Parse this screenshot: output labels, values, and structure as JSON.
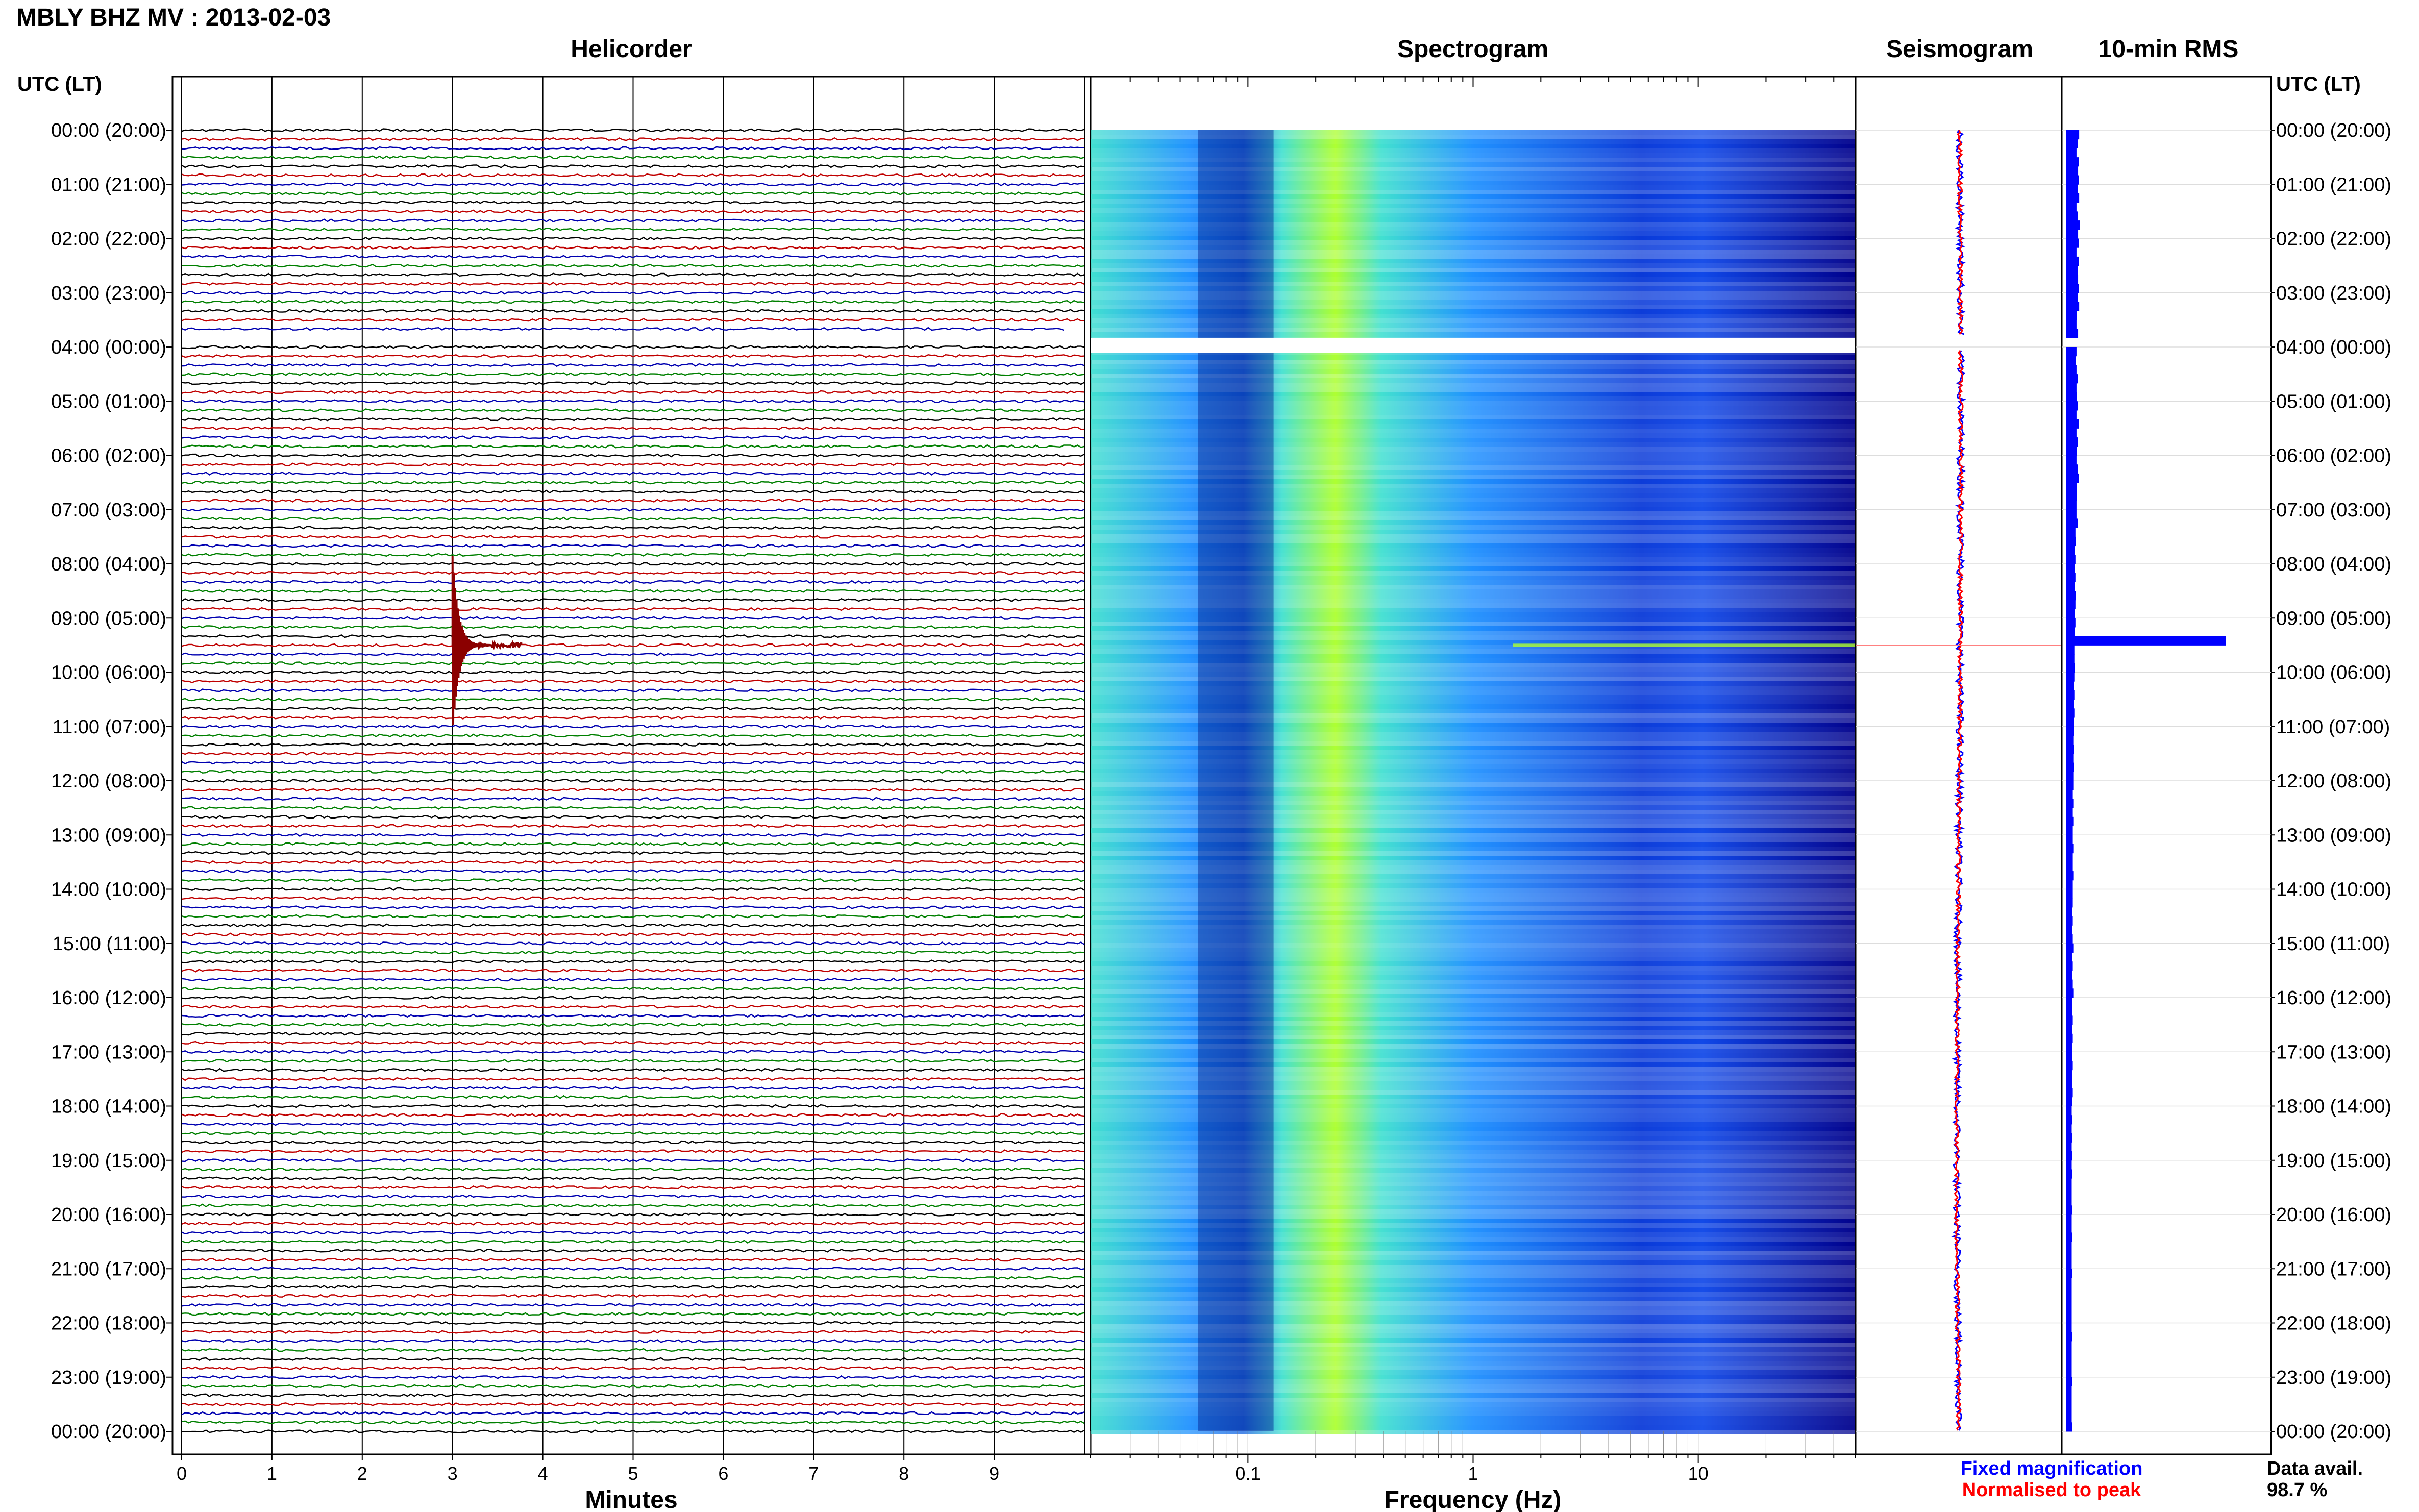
{
  "header": {
    "title": "MBLY BHZ MV : 2013-02-03",
    "utc_label_left": "UTC (LT)",
    "utc_label_right": "UTC (LT)"
  },
  "panels": {
    "helicorder": "Helicorder",
    "spectrogram": "Spectrogram",
    "seismogram": "Seismogram",
    "rms": "10-min RMS"
  },
  "colors": {
    "trace_cycle": [
      "#000000",
      "#c00000",
      "#0000b0",
      "#008000"
    ],
    "event": "#8b0000",
    "spec_low": "#00008b",
    "spec_mid": "#1e90ff",
    "spec_high": "#40e0d0",
    "spec_peak": "#adff2f",
    "fixed": "#0000ff",
    "normalised": "#ff0000",
    "rms_bar": "#0000ff"
  },
  "chart_data": {
    "type": "helicorder",
    "time_labels": [
      "00:00 (20:00)",
      "01:00 (21:00)",
      "02:00 (22:00)",
      "03:00 (23:00)",
      "04:00 (00:00)",
      "05:00 (01:00)",
      "06:00 (02:00)",
      "07:00 (03:00)",
      "08:00 (04:00)",
      "09:00 (05:00)",
      "10:00 (06:00)",
      "11:00 (07:00)",
      "12:00 (08:00)",
      "13:00 (09:00)",
      "14:00 (10:00)",
      "15:00 (11:00)",
      "16:00 (12:00)",
      "17:00 (13:00)",
      "18:00 (14:00)",
      "19:00 (15:00)",
      "20:00 (16:00)",
      "21:00 (17:00)",
      "22:00 (18:00)",
      "23:00 (19:00)",
      "00:00 (20:00)"
    ],
    "helicorder": {
      "xlabel": "Minutes",
      "xticks": [
        "0",
        "1",
        "2",
        "3",
        "4",
        "5",
        "6",
        "7",
        "8",
        "9"
      ],
      "xlim": [
        0,
        10
      ],
      "lines_per_hour": 6,
      "gap": {
        "start_hour": 3.83,
        "end_hour": 4.0
      },
      "event": {
        "hour": 9.5,
        "minute": 3.0
      }
    },
    "spectrogram": {
      "xlabel": "Frequency (Hz)",
      "xticks": [
        "0.1",
        "1",
        "10"
      ],
      "xscale": "log",
      "xlim": [
        0.02,
        50
      ],
      "event_band": {
        "hour": 9.5,
        "fmin": 1.5,
        "fmax": 50
      }
    },
    "seismogram": {
      "series": [
        {
          "name": "Fixed magnification",
          "color": "#0000ff"
        },
        {
          "name": "Normalised to peak",
          "color": "#ff0000"
        }
      ]
    },
    "rms": {
      "values": [
        0.25,
        0.22,
        0.2,
        0.24,
        0.23,
        0.24,
        0.22,
        0.25,
        0.2,
        0.22,
        0.26,
        0.23,
        0.24,
        0.2,
        0.24,
        0.22,
        0.23,
        0.24,
        0.22,
        0.25,
        0.21,
        0.2,
        0.23,
        0.0,
        0.2,
        0.19,
        0.2,
        0.22,
        0.2,
        0.21,
        0.22,
        0.2,
        0.24,
        0.2,
        0.22,
        0.21,
        0.2,
        0.22,
        0.24,
        0.21,
        0.21,
        0.2,
        0.2,
        0.22,
        0.18,
        0.19,
        0.17,
        0.18,
        0.17,
        0.18,
        0.17,
        0.19,
        0.18,
        0.17,
        0.18,
        0.17,
        1.0,
        0.16,
        0.16,
        0.17,
        0.16,
        0.15,
        0.16,
        0.15,
        0.16,
        0.15,
        0.15,
        0.14,
        0.15,
        0.14,
        0.15,
        0.14,
        0.14,
        0.13,
        0.14,
        0.13,
        0.14,
        0.13,
        0.13,
        0.14,
        0.13,
        0.13,
        0.14,
        0.13,
        0.13,
        0.13,
        0.12,
        0.13,
        0.12,
        0.13,
        0.14,
        0.12,
        0.13,
        0.12,
        0.13,
        0.14,
        0.12,
        0.12,
        0.13,
        0.12,
        0.13,
        0.12,
        0.12,
        0.13,
        0.12,
        0.12,
        0.13,
        0.12,
        0.11,
        0.12,
        0.11,
        0.12,
        0.11,
        0.12,
        0.11,
        0.12,
        0.11,
        0.11,
        0.11,
        0.12,
        0.11,
        0.11,
        0.12,
        0.11,
        0.11,
        0.11,
        0.12,
        0.11,
        0.11,
        0.11,
        0.11,
        0.11,
        0.11,
        0.12,
        0.11,
        0.11,
        0.11,
        0.11,
        0.12,
        0.11,
        0.11,
        0.11,
        0.11,
        0.12
      ]
    }
  },
  "legend": {
    "fixed": "Fixed magnification",
    "normalised": "Normalised to peak"
  },
  "availability": {
    "label": "Data avail.",
    "value": "98.7 %"
  }
}
